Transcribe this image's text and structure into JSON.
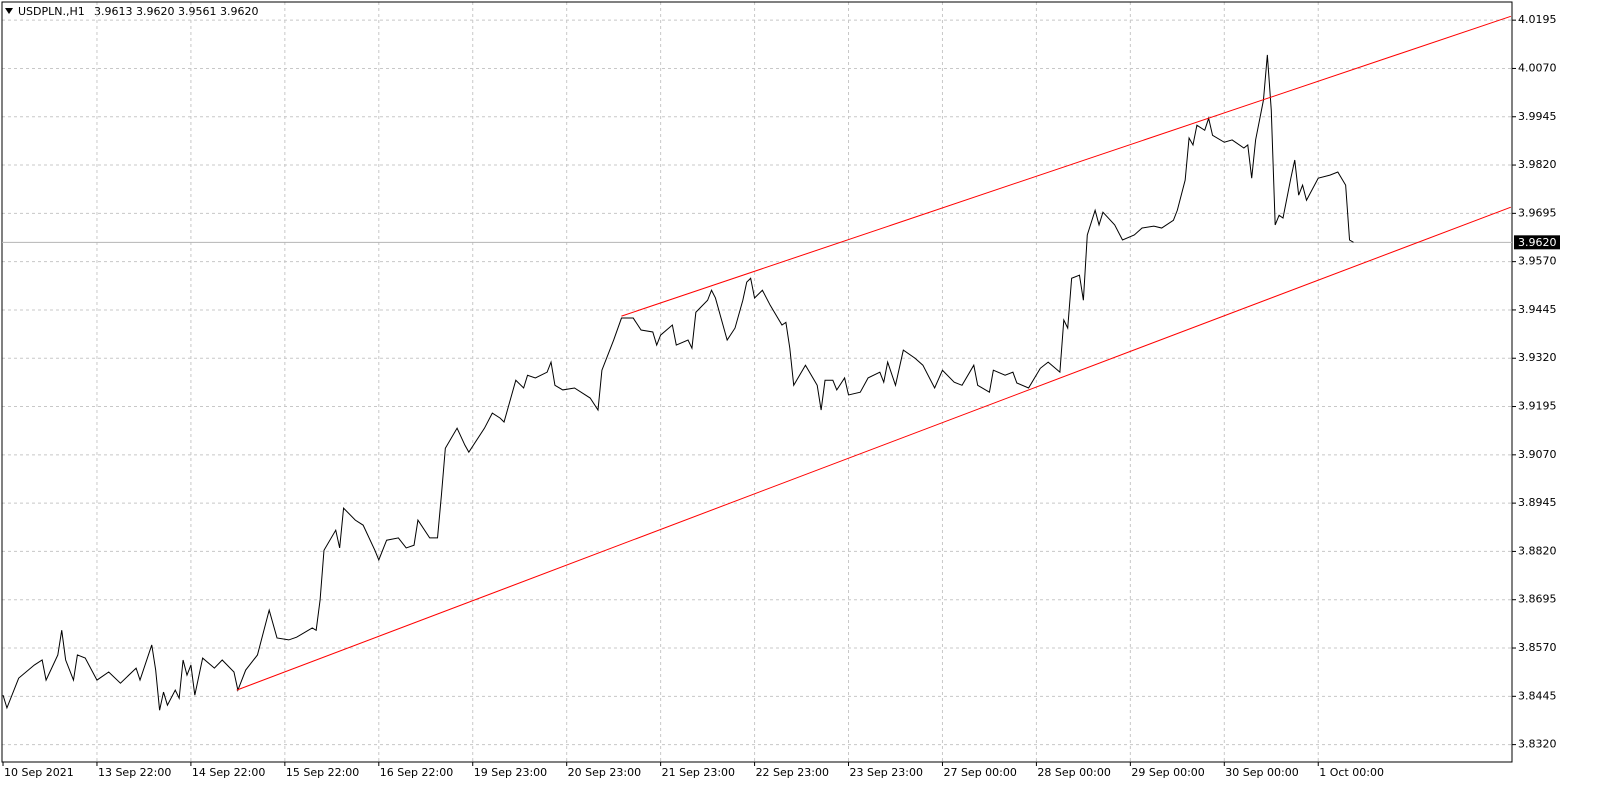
{
  "chart_data": {
    "type": "line",
    "title": "USDPLN.,H1",
    "subtitle": "3.9613 3.9620 3.9561 3.9620",
    "color": "#000000",
    "grid": true,
    "x": [
      0,
      1,
      4,
      8,
      10,
      11,
      14,
      15,
      16,
      18,
      19,
      21,
      24,
      27,
      30,
      34,
      35,
      38,
      39,
      40,
      41,
      42,
      44,
      45,
      46,
      47,
      48,
      49,
      51,
      54,
      56,
      59,
      60,
      62,
      65,
      68,
      70,
      73,
      75,
      79,
      80,
      81,
      82,
      85,
      86,
      87,
      90,
      92,
      95,
      96,
      98,
      101,
      103,
      105,
      106,
      109,
      111,
      112,
      113,
      116,
      118,
      119,
      123,
      125,
      127,
      128,
      131,
      133,
      134,
      136,
      139,
      140,
      141,
      143,
      146,
      150,
      152,
      153,
      156,
      158,
      161,
      163,
      166,
      167,
      168,
      171,
      172,
      175,
      176,
      177,
      180,
      181,
      182,
      185,
      187,
      189,
      190,
      191,
      192,
      194,
      196,
      199,
      200,
      201,
      202,
      205,
      208,
      209,
      210,
      212,
      213,
      215,
      216,
      219,
      221,
      224,
      225,
      226,
      228,
      230,
      233,
      235,
      238,
      240,
      243,
      245,
      248,
      249,
      252,
      253,
      256,
      258,
      259,
      262,
      265,
      267,
      270,
      271,
      272,
      273,
      275,
      276,
      277,
      279,
      280,
      281,
      284,
      286,
      289,
      291,
      294,
      296,
      299,
      300,
      302,
      303,
      304,
      305,
      307,
      308,
      309,
      312,
      314,
      317,
      318,
      319,
      320,
      322,
      323,
      324,
      325,
      326,
      327,
      329,
      330,
      331,
      332,
      333,
      336,
      339,
      341,
      343,
      344,
      345
    ],
    "values": [
      3.8448,
      3.8415,
      3.8492,
      3.8526,
      3.8539,
      3.8487,
      3.8552,
      3.8616,
      3.8539,
      3.8487,
      3.8552,
      3.8544,
      3.8487,
      3.8508,
      3.8479,
      3.8518,
      3.8487,
      3.8578,
      3.8513,
      3.8409,
      3.8456,
      3.8422,
      3.8461,
      3.844,
      3.8539,
      3.85,
      3.8526,
      3.8448,
      3.8544,
      3.8518,
      3.8539,
      3.8508,
      3.8461,
      3.8513,
      3.8552,
      3.8668,
      3.8596,
      3.8591,
      3.8598,
      3.8622,
      3.8616,
      3.8694,
      3.8823,
      3.8875,
      3.8829,
      3.8932,
      3.8901,
      3.8888,
      3.8823,
      3.8798,
      3.8849,
      3.8855,
      3.8829,
      3.8836,
      3.8901,
      3.8855,
      3.8855,
      3.8966,
      3.9087,
      3.9139,
      3.9095,
      3.9077,
      3.9139,
      3.9178,
      3.9165,
      3.9155,
      3.9263,
      3.9243,
      3.9276,
      3.9269,
      3.9284,
      3.931,
      3.925,
      3.9238,
      3.9243,
      3.9217,
      3.9186,
      3.9289,
      3.9367,
      3.9424,
      3.9424,
      3.9393,
      3.9388,
      3.9354,
      3.938,
      3.9406,
      3.9354,
      3.9367,
      3.9346,
      3.9439,
      3.947,
      3.9496,
      3.9476,
      3.9367,
      3.9398,
      3.947,
      3.9517,
      3.9527,
      3.9476,
      3.9496,
      3.9457,
      3.9406,
      3.9413,
      3.9346,
      3.925,
      3.9302,
      3.925,
      3.9186,
      3.9263,
      3.9263,
      3.9238,
      3.9269,
      3.9225,
      3.9232,
      3.9269,
      3.9284,
      3.9258,
      3.931,
      3.925,
      3.9341,
      3.932,
      3.9302,
      3.9243,
      3.9289,
      3.9258,
      3.925,
      3.9302,
      3.925,
      3.9232,
      3.9289,
      3.9276,
      3.9284,
      3.9256,
      3.9243,
      3.9294,
      3.931,
      3.9284,
      3.9419,
      3.9398,
      3.9527,
      3.9535,
      3.947,
      3.9639,
      3.9703,
      3.9665,
      3.9698,
      3.9665,
      3.9626,
      3.9639,
      3.9657,
      3.9662,
      3.9657,
      3.9677,
      3.9703,
      3.9781,
      3.989,
      3.9872,
      3.9923,
      3.991,
      3.9941,
      3.9897,
      3.9879,
      3.9885,
      3.9864,
      3.9872,
      3.9786,
      3.9885,
      3.9988,
      4.0105,
      3.9962,
      3.9665,
      3.969,
      3.9683,
      3.9786,
      3.9833,
      3.9742,
      3.9768,
      3.9729,
      3.9786,
      3.9794,
      3.9802,
      3.9768,
      3.9626,
      3.962
    ],
    "xlim": [
      -0.26,
      385.5
    ],
    "xticks": [
      {
        "value": 0,
        "label": "10 Sep 2021"
      },
      {
        "value": 24,
        "label": "13 Sep 22:00"
      },
      {
        "value": 48,
        "label": "14 Sep 22:00"
      },
      {
        "value": 72,
        "label": "15 Sep 22:00"
      },
      {
        "value": 96,
        "label": "16 Sep 22:00"
      },
      {
        "value": 120,
        "label": "19 Sep 23:00"
      },
      {
        "value": 144,
        "label": "20 Sep 23:00"
      },
      {
        "value": 168,
        "label": "21 Sep 23:00"
      },
      {
        "value": 192,
        "label": "22 Sep 23:00"
      },
      {
        "value": 216,
        "label": "23 Sep 23:00"
      },
      {
        "value": 240,
        "label": "27 Sep 00:00"
      },
      {
        "value": 264,
        "label": "28 Sep 00:00"
      },
      {
        "value": 288,
        "label": "29 Sep 00:00"
      },
      {
        "value": 312,
        "label": "30 Sep 00:00"
      },
      {
        "value": 336,
        "label": "1 Oct 00:00"
      }
    ],
    "ylim": [
      3.8275,
      4.0242
    ],
    "yticks": [
      4.0195,
      {
        "value": 4.007,
        "label": "4.0070"
      },
      3.9945,
      {
        "value": 3.982,
        "label": "3.9820"
      },
      3.9695,
      {
        "value": 3.957,
        "label": "3.9570"
      },
      3.9445,
      {
        "value": 3.932,
        "label": "3.9320"
      },
      3.9195,
      {
        "value": 3.907,
        "label": "3.9070"
      },
      3.8945,
      {
        "value": 3.882,
        "label": "3.8820"
      },
      3.8695,
      {
        "value": 3.857,
        "label": "3.8570"
      },
      3.8445,
      {
        "value": 3.832,
        "label": "3.8320"
      }
    ],
    "current": {
      "value": 3.962,
      "label": "3.9620"
    },
    "trendlines": [
      {
        "color": "#ff0000",
        "points": [
          [
            59.7,
            3.8461
          ],
          [
            385.2,
            3.9711
          ]
        ]
      },
      {
        "color": "#ff0000",
        "points": [
          [
            158,
            3.9429
          ],
          [
            385.2,
            4.0205
          ]
        ]
      }
    ]
  }
}
